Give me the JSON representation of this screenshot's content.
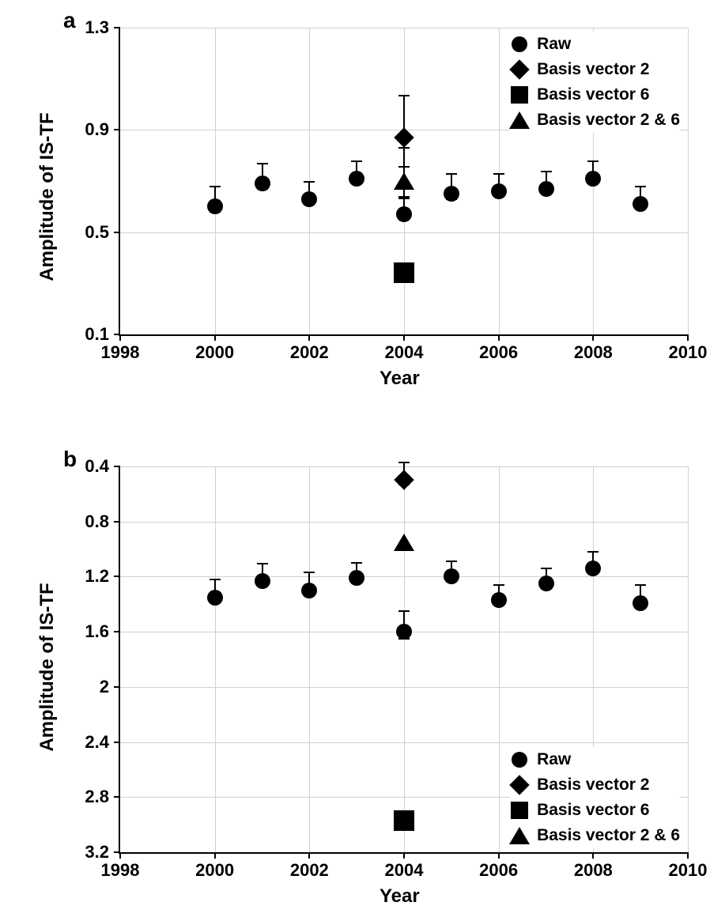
{
  "chart_a": {
    "panel_label": "a",
    "ylabel": "Amplitude of IS-TF",
    "xlabel": "Year",
    "xlim": [
      1998,
      2010
    ],
    "ylim": [
      0.1,
      1.3
    ],
    "xticks": [
      1998,
      2000,
      2002,
      2004,
      2006,
      2008,
      2010
    ],
    "yticks": [
      0.1,
      0.5,
      0.9,
      1.3
    ],
    "grid_color": "#d0d0d0",
    "background_color": "#ffffff",
    "axis_color": "#000000",
    "tick_fontsize": 22,
    "label_fontsize": 24,
    "legend": {
      "items": [
        {
          "marker": "circle",
          "label": "Raw"
        },
        {
          "marker": "diamond",
          "label": "Basis vector 2"
        },
        {
          "marker": "square",
          "label": "Basis vector 6"
        },
        {
          "marker": "triangle",
          "label": "Basis vector 2 & 6"
        }
      ],
      "position": "top-right"
    },
    "series_raw": {
      "marker": "circle",
      "color": "#000000",
      "size": 20,
      "x": [
        2000,
        2001,
        2002,
        2003,
        2004,
        2005,
        2006,
        2007,
        2008,
        2009
      ],
      "y": [
        0.6,
        0.69,
        0.63,
        0.71,
        0.57,
        0.65,
        0.66,
        0.67,
        0.71,
        0.61
      ],
      "err": [
        0.05,
        0.05,
        0.04,
        0.04,
        0.04,
        0.05,
        0.04,
        0.04,
        0.04,
        0.04
      ]
    },
    "series_bv2": {
      "marker": "diamond",
      "color": "#000000",
      "size": 18,
      "x": [
        2004
      ],
      "y": [
        0.87
      ],
      "err": [
        0.14
      ]
    },
    "series_bv6": {
      "marker": "square",
      "color": "#000000",
      "size": 26,
      "x": [
        2004
      ],
      "y": [
        0.34
      ],
      "err": [
        0
      ]
    },
    "series_bv26": {
      "marker": "triangle",
      "color": "#000000",
      "size": 22,
      "x": [
        2004
      ],
      "y": [
        0.7
      ],
      "err": [
        0.1
      ]
    }
  },
  "chart_b": {
    "panel_label": "b",
    "ylabel": "Amplitude of IS-TF",
    "xlabel": "Year",
    "xlim": [
      1998,
      2010
    ],
    "ylim": [
      3.2,
      0.4
    ],
    "y_inverted": true,
    "xticks": [
      1998,
      2000,
      2002,
      2004,
      2006,
      2008,
      2010
    ],
    "yticks": [
      0.4,
      0.8,
      1.2,
      1.6,
      2,
      2.4,
      2.8,
      3.2
    ],
    "grid_color": "#d0d0d0",
    "background_color": "#ffffff",
    "axis_color": "#000000",
    "tick_fontsize": 22,
    "label_fontsize": 24,
    "legend": {
      "items": [
        {
          "marker": "circle",
          "label": "Raw"
        },
        {
          "marker": "diamond",
          "label": "Basis vector 2"
        },
        {
          "marker": "square",
          "label": "Basis vector 6"
        },
        {
          "marker": "triangle",
          "label": "Basis vector 2 & 6"
        }
      ],
      "position": "bottom-right"
    },
    "series_raw": {
      "marker": "circle",
      "color": "#000000",
      "size": 20,
      "x": [
        2000,
        2001,
        2002,
        2003,
        2004,
        2005,
        2006,
        2007,
        2008,
        2009
      ],
      "y": [
        1.35,
        1.23,
        1.3,
        1.21,
        1.6,
        1.2,
        1.37,
        1.25,
        1.14,
        1.39
      ],
      "err": [
        0.08,
        0.07,
        0.08,
        0.06,
        0.1,
        0.06,
        0.06,
        0.06,
        0.07,
        0.08
      ]
    },
    "series_bv2": {
      "marker": "diamond",
      "color": "#000000",
      "size": 18,
      "x": [
        2004
      ],
      "y": [
        0.5
      ],
      "err": [
        0.08
      ]
    },
    "series_bv6": {
      "marker": "square",
      "color": "#000000",
      "size": 26,
      "x": [
        2004
      ],
      "y": [
        2.97
      ],
      "err": [
        0
      ]
    },
    "series_bv26": {
      "marker": "triangle",
      "color": "#000000",
      "size": 22,
      "x": [
        2004
      ],
      "y": [
        0.95
      ],
      "err": [
        0
      ]
    }
  }
}
